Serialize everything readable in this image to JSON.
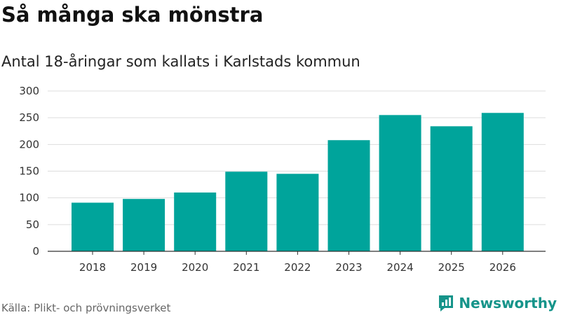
{
  "title": "Så många ska mönstra",
  "subtitle": "Antal 18-åringar som kallats i Karlstads kommun",
  "source": "Källa: Plikt- och prövningsverket",
  "brand": {
    "name": "Newsworthy",
    "icon": "newsworthy-logo-icon"
  },
  "colors": {
    "bar": "#00a49b",
    "grid": "#dddddd",
    "axis": "#333333",
    "brand": "#16948a"
  },
  "chart_data": {
    "type": "bar",
    "title": "Så många ska mönstra",
    "subtitle": "Antal 18-åringar som kallats i Karlstads kommun",
    "xlabel": "",
    "ylabel": "",
    "categories": [
      "2018",
      "2019",
      "2020",
      "2021",
      "2022",
      "2023",
      "2024",
      "2025",
      "2026"
    ],
    "values": [
      91,
      98,
      110,
      149,
      145,
      208,
      255,
      234,
      259
    ],
    "ylim": [
      0,
      300
    ],
    "yticks": [
      0,
      50,
      100,
      150,
      200,
      250,
      300
    ],
    "grid": true,
    "legend": "none"
  }
}
